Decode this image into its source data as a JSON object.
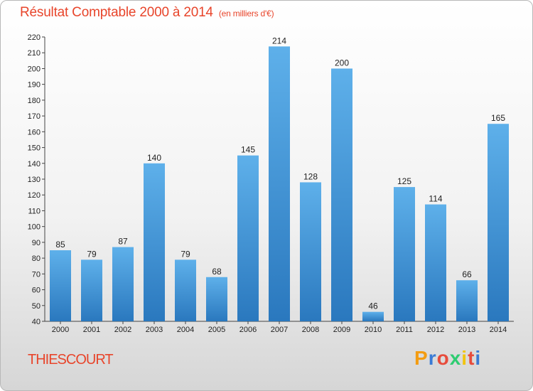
{
  "title": {
    "main": "Résultat Comptable 2000 à 2014",
    "unit": "(en milliers d'€)"
  },
  "commune": "THIESCOURT",
  "logo": {
    "text": "Proxiti",
    "colors": [
      "#f39c12",
      "#3a7bd5",
      "#e74c3c",
      "#2ecc71",
      "#f1c40f",
      "#e74c3c",
      "#3a7bd5"
    ]
  },
  "chart_data": {
    "type": "bar",
    "categories": [
      "2000",
      "2001",
      "2002",
      "2003",
      "2004",
      "2005",
      "2006",
      "2007",
      "2008",
      "2009",
      "2010",
      "2011",
      "2012",
      "2013",
      "2014"
    ],
    "values": [
      85,
      79,
      87,
      140,
      79,
      68,
      145,
      214,
      128,
      200,
      46,
      125,
      114,
      66,
      165
    ],
    "ylim": [
      40,
      220
    ],
    "ytick_step": 10,
    "xlabel": "",
    "ylabel": "",
    "grid": false,
    "bar_color": "#3d95d8"
  }
}
